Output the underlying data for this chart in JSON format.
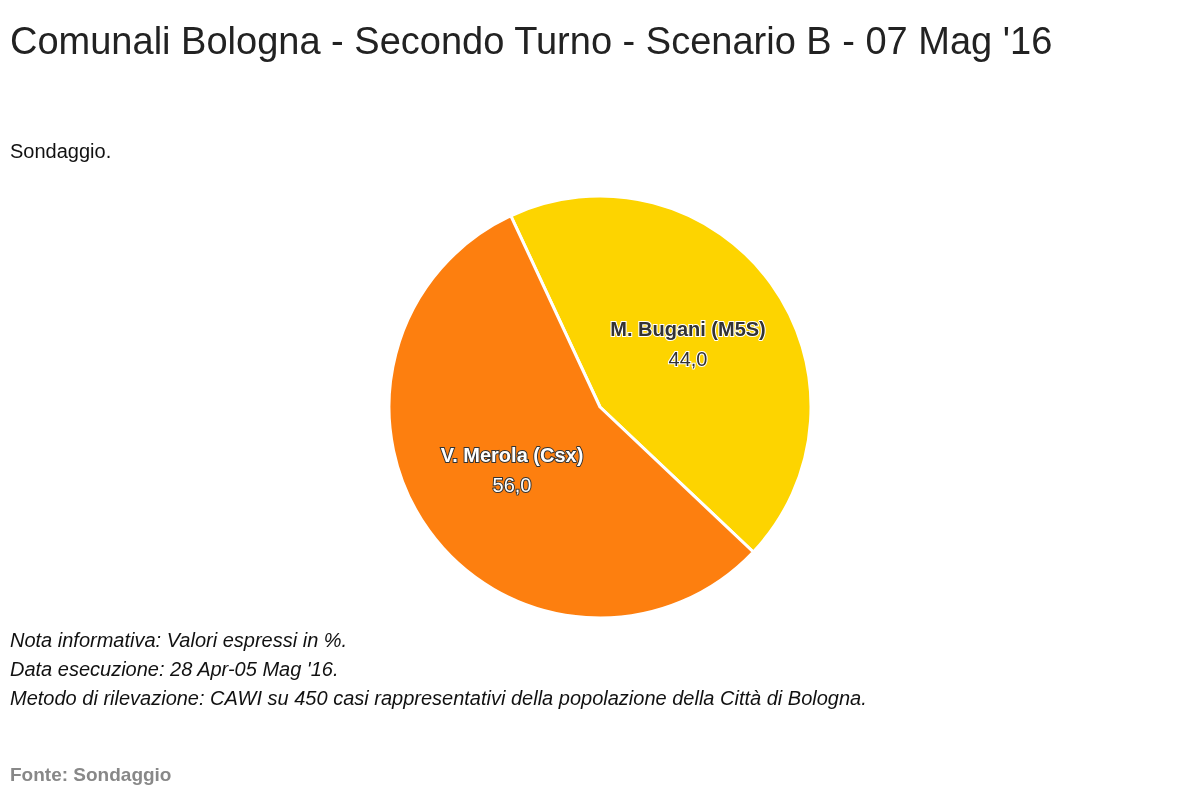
{
  "chart_data": {
    "type": "pie",
    "title": "Comunali Bologna - Secondo Turno - Scenario B - 07 Mag '16",
    "subtitle": "Sondaggio.",
    "categories": [
      "M. Bugani (M5S)",
      "V. Merola (Csx)"
    ],
    "values": [
      44.0,
      56.0
    ],
    "colors": [
      "#fdd400",
      "#fd7f0f"
    ],
    "value_labels": [
      "44,0",
      "56,0"
    ],
    "annotations": [
      "Nota informativa: Valori espressi in %.",
      "Data esecuzione: 28 Apr-05 Mag '16.",
      "Metodo di rilevazione: CAWI su 450 casi rappresentativi della popolazione della Città di Bologna.",
      "Fonte: Sondaggio"
    ]
  }
}
